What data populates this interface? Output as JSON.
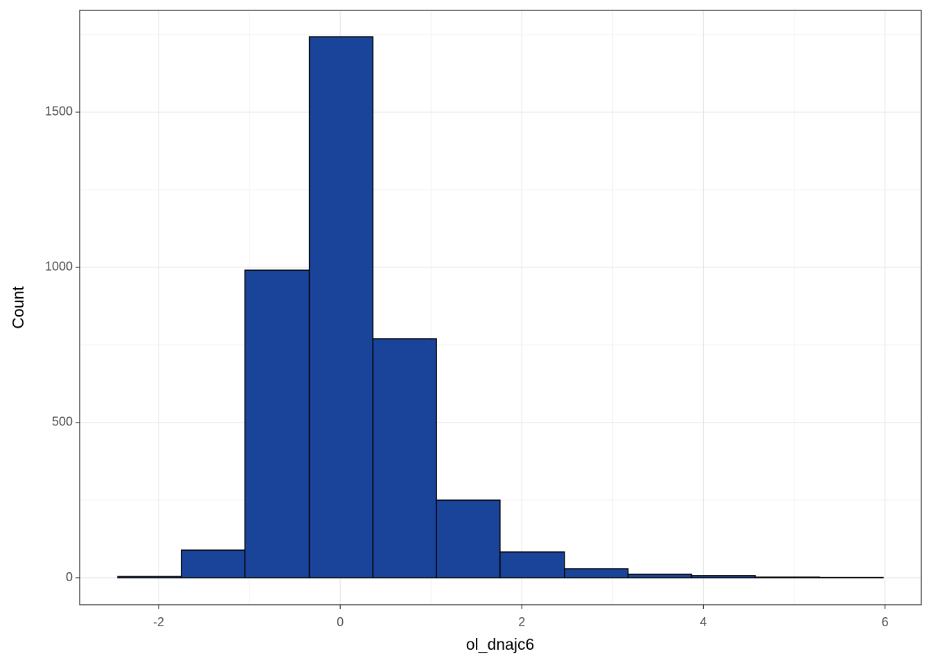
{
  "chart_data": {
    "type": "histogram",
    "x_label": "ol_dnajc6",
    "y_label": "Count",
    "bins": [
      -2.45,
      -1.75,
      -1.05,
      -0.34,
      0.36,
      1.06,
      1.76,
      2.47,
      3.17,
      3.87,
      4.57,
      5.28,
      5.98
    ],
    "values": [
      4,
      89,
      991,
      1743,
      770,
      250,
      83,
      29,
      11,
      7,
      2,
      1
    ],
    "color": "#19449a",
    "edge_color": "#000000",
    "xlim": [
      -2.87,
      6.4
    ],
    "xticks": [
      -2,
      0,
      2,
      4,
      6
    ],
    "ylim": [
      -87,
      1828
    ],
    "yticks": [
      0,
      500,
      1000,
      1500
    ],
    "grid": true
  }
}
